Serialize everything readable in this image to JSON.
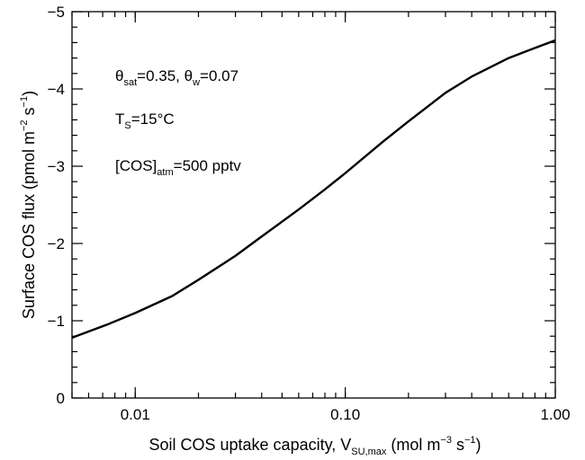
{
  "chart_data": {
    "type": "line",
    "x_scale": "log",
    "xlim": [
      0.005,
      1.0
    ],
    "ylim": [
      0,
      -5
    ],
    "y_axis_inverted": true,
    "grid": false,
    "legend": "none",
    "xticks": [
      {
        "value": 0.01,
        "label": "0.01"
      },
      {
        "value": 0.1,
        "label": "0.10"
      },
      {
        "value": 1.0,
        "label": "1.00"
      }
    ],
    "yticks": [
      {
        "value": -5,
        "label": "−5"
      },
      {
        "value": -4,
        "label": "−4"
      },
      {
        "value": -3,
        "label": "−3"
      },
      {
        "value": -2,
        "label": "−2"
      },
      {
        "value": -1,
        "label": "−1"
      },
      {
        "value": 0,
        "label": "0"
      }
    ],
    "xlabel": {
      "text": "Soil COS uptake capacity, V",
      "sub": "SU,max",
      "unit_open": " (mol m",
      "sup1": "−3",
      "mid": " s",
      "sup2": "−1",
      "close": ")"
    },
    "ylabel": {
      "text": "Surface COS flux (pmol m",
      "sup1": "−2",
      "mid": " s",
      "sup2": "−1",
      "close": ")"
    },
    "annotations": {
      "theta": {
        "sym1": "θ",
        "sub1": "sat",
        "val1": "=0.35, ",
        "sym2": "θ",
        "sub2": "w",
        "val2": "=0.07"
      },
      "temp": {
        "sym": "T",
        "sub": "S",
        "val": "=15°C"
      },
      "cos": {
        "pre": "[COS]",
        "sub": "atm",
        "val": "=500 pptv"
      }
    },
    "series": [
      {
        "color": "#000000",
        "x": [
          0.005,
          0.0075,
          0.01,
          0.015,
          0.02,
          0.03,
          0.04,
          0.06,
          0.08,
          0.1,
          0.15,
          0.2,
          0.3,
          0.4,
          0.6,
          0.8,
          1.0
        ],
        "y": [
          -0.78,
          -0.96,
          -1.1,
          -1.32,
          -1.53,
          -1.84,
          -2.09,
          -2.44,
          -2.7,
          -2.91,
          -3.31,
          -3.58,
          -3.95,
          -4.16,
          -4.4,
          -4.53,
          -4.63
        ]
      }
    ]
  }
}
